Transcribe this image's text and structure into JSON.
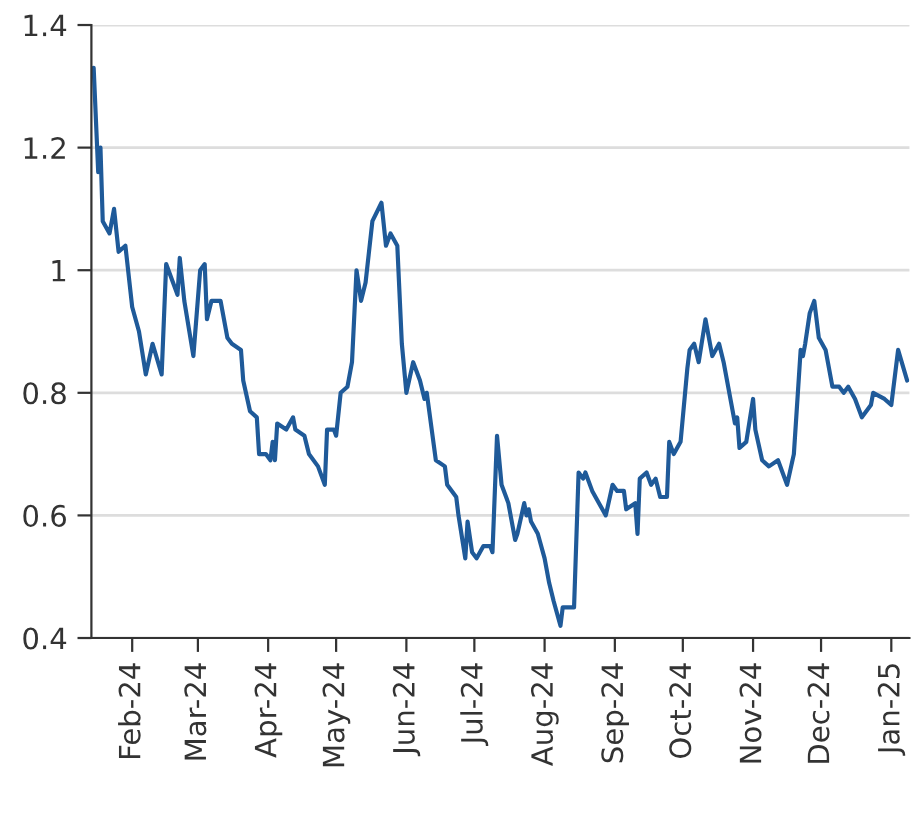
{
  "chart_data": {
    "type": "line",
    "x": [
      "2024-01-15",
      "2024-01-17",
      "2024-01-18",
      "2024-01-19",
      "2024-01-22",
      "2024-01-24",
      "2024-01-26",
      "2024-01-29",
      "2024-02-01",
      "2024-02-04",
      "2024-02-07",
      "2024-02-10",
      "2024-02-14",
      "2024-02-16",
      "2024-02-21",
      "2024-02-22",
      "2024-02-24",
      "2024-02-28",
      "2024-03-02",
      "2024-03-04",
      "2024-03-05",
      "2024-03-07",
      "2024-03-11",
      "2024-03-14",
      "2024-03-16",
      "2024-03-20",
      "2024-03-21",
      "2024-03-24",
      "2024-03-27",
      "2024-03-28",
      "2024-03-31",
      "2024-04-02",
      "2024-04-03",
      "2024-04-04",
      "2024-04-05",
      "2024-04-09",
      "2024-04-12",
      "2024-04-13",
      "2024-04-17",
      "2024-04-19",
      "2024-04-23",
      "2024-04-26",
      "2024-04-27",
      "2024-04-30",
      "2024-05-01",
      "2024-05-03",
      "2024-05-06",
      "2024-05-08",
      "2024-05-10",
      "2024-05-12",
      "2024-05-14",
      "2024-05-17",
      "2024-05-21",
      "2024-05-23",
      "2024-05-25",
      "2024-05-28",
      "2024-05-30",
      "2024-06-01",
      "2024-06-04",
      "2024-06-07",
      "2024-06-09",
      "2024-06-10",
      "2024-06-14",
      "2024-06-18",
      "2024-06-19",
      "2024-06-23",
      "2024-06-24",
      "2024-06-27",
      "2024-06-28",
      "2024-06-30",
      "2024-07-02",
      "2024-07-05",
      "2024-07-08",
      "2024-07-09",
      "2024-07-11",
      "2024-07-13",
      "2024-07-16",
      "2024-07-19",
      "2024-07-20",
      "2024-07-23",
      "2024-07-24",
      "2024-07-25",
      "2024-07-26",
      "2024-07-29",
      "2024-08-01",
      "2024-08-03",
      "2024-08-05",
      "2024-08-08",
      "2024-08-09",
      "2024-08-14",
      "2024-08-16",
      "2024-08-18",
      "2024-08-19",
      "2024-08-22",
      "2024-08-25",
      "2024-08-28",
      "2024-08-31",
      "2024-09-02",
      "2024-09-05",
      "2024-09-06",
      "2024-09-10",
      "2024-09-11",
      "2024-09-12",
      "2024-09-15",
      "2024-09-17",
      "2024-09-19",
      "2024-09-21",
      "2024-09-24",
      "2024-09-25",
      "2024-09-27",
      "2024-09-30",
      "2024-10-03",
      "2024-10-04",
      "2024-10-06",
      "2024-10-08",
      "2024-10-11",
      "2024-10-14",
      "2024-10-17",
      "2024-10-19",
      "2024-10-21",
      "2024-10-24",
      "2024-10-25",
      "2024-10-26",
      "2024-10-29",
      "2024-11-01",
      "2024-11-02",
      "2024-11-05",
      "2024-11-08",
      "2024-11-12",
      "2024-11-16",
      "2024-11-19",
      "2024-11-22",
      "2024-11-23",
      "2024-11-24",
      "2024-11-26",
      "2024-11-28",
      "2024-11-30",
      "2024-12-03",
      "2024-12-06",
      "2024-12-09",
      "2024-12-11",
      "2024-12-13",
      "2024-12-16",
      "2024-12-19",
      "2024-12-23",
      "2024-12-24",
      "2024-12-29",
      "2025-01-01",
      "2025-01-04",
      "2025-01-08"
    ],
    "series": [
      {
        "color": "#1f5a99",
        "values": [
          1.33,
          1.16,
          1.2,
          1.08,
          1.06,
          1.1,
          1.03,
          1.04,
          0.94,
          0.9,
          0.83,
          0.88,
          0.83,
          1.01,
          0.96,
          1.02,
          0.95,
          0.86,
          1.0,
          1.01,
          0.92,
          0.95,
          0.95,
          0.89,
          0.88,
          0.87,
          0.82,
          0.77,
          0.76,
          0.7,
          0.7,
          0.69,
          0.72,
          0.69,
          0.75,
          0.74,
          0.76,
          0.74,
          0.73,
          0.7,
          0.68,
          0.65,
          0.74,
          0.74,
          0.73,
          0.8,
          0.81,
          0.85,
          1.0,
          0.95,
          0.98,
          1.08,
          1.11,
          1.04,
          1.06,
          1.04,
          0.88,
          0.8,
          0.85,
          0.82,
          0.79,
          0.8,
          0.69,
          0.68,
          0.65,
          0.63,
          0.6,
          0.53,
          0.59,
          0.54,
          0.53,
          0.55,
          0.55,
          0.54,
          0.73,
          0.65,
          0.62,
          0.56,
          0.57,
          0.62,
          0.6,
          0.61,
          0.59,
          0.57,
          0.53,
          0.49,
          0.46,
          0.42,
          0.45,
          0.45,
          0.67,
          0.66,
          0.67,
          0.64,
          0.62,
          0.6,
          0.65,
          0.64,
          0.64,
          0.61,
          0.62,
          0.57,
          0.66,
          0.67,
          0.65,
          0.66,
          0.63,
          0.63,
          0.72,
          0.7,
          0.72,
          0.84,
          0.87,
          0.88,
          0.85,
          0.92,
          0.86,
          0.88,
          0.85,
          0.81,
          0.75,
          0.76,
          0.71,
          0.72,
          0.79,
          0.74,
          0.69,
          0.68,
          0.69,
          0.65,
          0.7,
          0.87,
          0.86,
          0.88,
          0.93,
          0.95,
          0.89,
          0.87,
          0.81,
          0.81,
          0.8,
          0.81,
          0.79,
          0.76,
          0.78,
          0.8,
          0.79,
          0.78,
          0.87,
          0.82
        ]
      }
    ],
    "xlim": [
      "2024-01-14",
      "2025-01-09"
    ],
    "xticks": [
      {
        "value": "2024-02-01",
        "label": "Feb-24"
      },
      {
        "value": "2024-03-01",
        "label": "Mar-24"
      },
      {
        "value": "2024-04-01",
        "label": "Apr-24"
      },
      {
        "value": "2024-05-01",
        "label": "May-24"
      },
      {
        "value": "2024-06-01",
        "label": "Jun-24"
      },
      {
        "value": "2024-07-01",
        "label": "Jul-24"
      },
      {
        "value": "2024-08-01",
        "label": "Aug-24"
      },
      {
        "value": "2024-09-01",
        "label": "Sep-24"
      },
      {
        "value": "2024-10-01",
        "label": "Oct-24"
      },
      {
        "value": "2024-11-01",
        "label": "Nov-24"
      },
      {
        "value": "2024-12-01",
        "label": "Dec-24"
      },
      {
        "value": "2025-01-01",
        "label": "Jan-25"
      }
    ],
    "ylim": [
      0.4,
      1.4
    ],
    "yticks": [
      0.4,
      0.6,
      0.8,
      1,
      1.2,
      1.4
    ],
    "grid": "y",
    "line_style": "solid",
    "marker": "none"
  }
}
